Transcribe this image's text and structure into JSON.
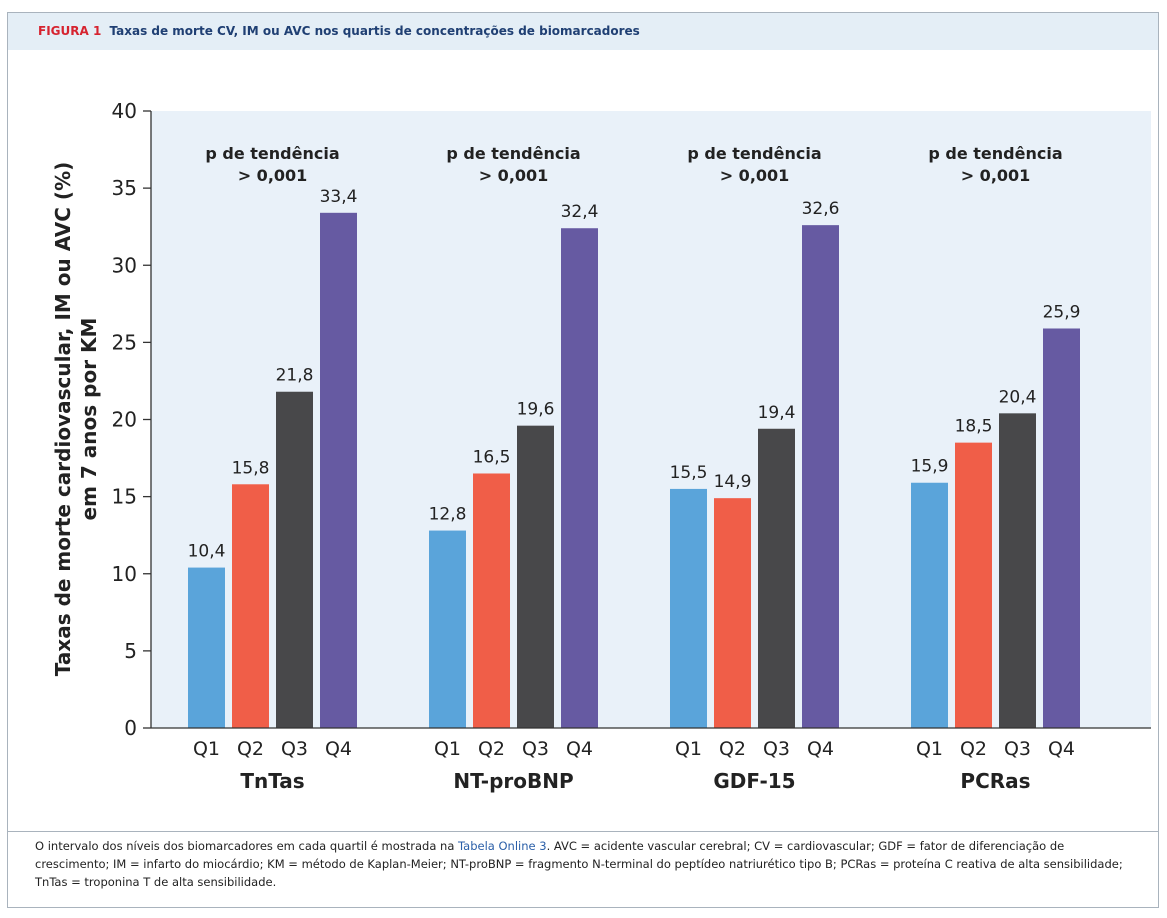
{
  "figure": {
    "label": "FIGURA 1",
    "title": "Taxas de morte CV, IM ou AVC nos quartis de concentrações de biomarcadores"
  },
  "caption": {
    "before_link": "O intervalo dos níveis dos biomarcadores em cada quartil é mostrada na ",
    "link": "Tabela Online 3",
    "after_link": ". AVC = acidente vascular cerebral; CV = cardiovascular; GDF = fator de diferenciação de crescimento; IM = infarto do miocárdio; KM = método de Kaplan-Meier; NT-proBNP = fragmento N-terminal do peptídeo natriurético tipo B; PCRas = proteína C reativa de alta sensibilidade; TnTas = troponina T de alta sensibilidade."
  },
  "chart_data": {
    "type": "bar",
    "title": "",
    "ylabel_lines": [
      "Taxas de morte cardiovascular, IM ou AVC (%)",
      "em 7 anos por KM"
    ],
    "ylim": [
      0,
      40
    ],
    "yticks": [
      0,
      5,
      10,
      15,
      20,
      25,
      30,
      35,
      40
    ],
    "grid": false,
    "quartiles": [
      "Q1",
      "Q2",
      "Q3",
      "Q4"
    ],
    "quartile_colors": [
      "#5aa4da",
      "#f05e48",
      "#48484a",
      "#665aa2"
    ],
    "plot_background": "#e9f1f9",
    "groups": [
      {
        "name": "TnTas",
        "values": [
          10.4,
          15.8,
          21.8,
          33.4
        ],
        "labels": [
          "10,4",
          "15,8",
          "21,8",
          "33,4"
        ],
        "annotation": [
          "p de tendência",
          "> 0,001"
        ]
      },
      {
        "name": "NT-proBNP",
        "values": [
          12.8,
          16.5,
          19.6,
          32.4
        ],
        "labels": [
          "12,8",
          "16,5",
          "19,6",
          "32,4"
        ],
        "annotation": [
          "p de tendência",
          "> 0,001"
        ]
      },
      {
        "name": "GDF-15",
        "values": [
          15.5,
          14.9,
          19.4,
          32.6
        ],
        "labels": [
          "15,5",
          "14,9",
          "19,4",
          "32,6"
        ],
        "annotation": [
          "p de tendência",
          "> 0,001"
        ]
      },
      {
        "name": "PCRas",
        "values": [
          15.9,
          18.5,
          20.4,
          25.9
        ],
        "labels": [
          "15,9",
          "18,5",
          "20,4",
          "25,9"
        ],
        "annotation": [
          "p de tendência",
          "> 0,001"
        ]
      }
    ]
  }
}
